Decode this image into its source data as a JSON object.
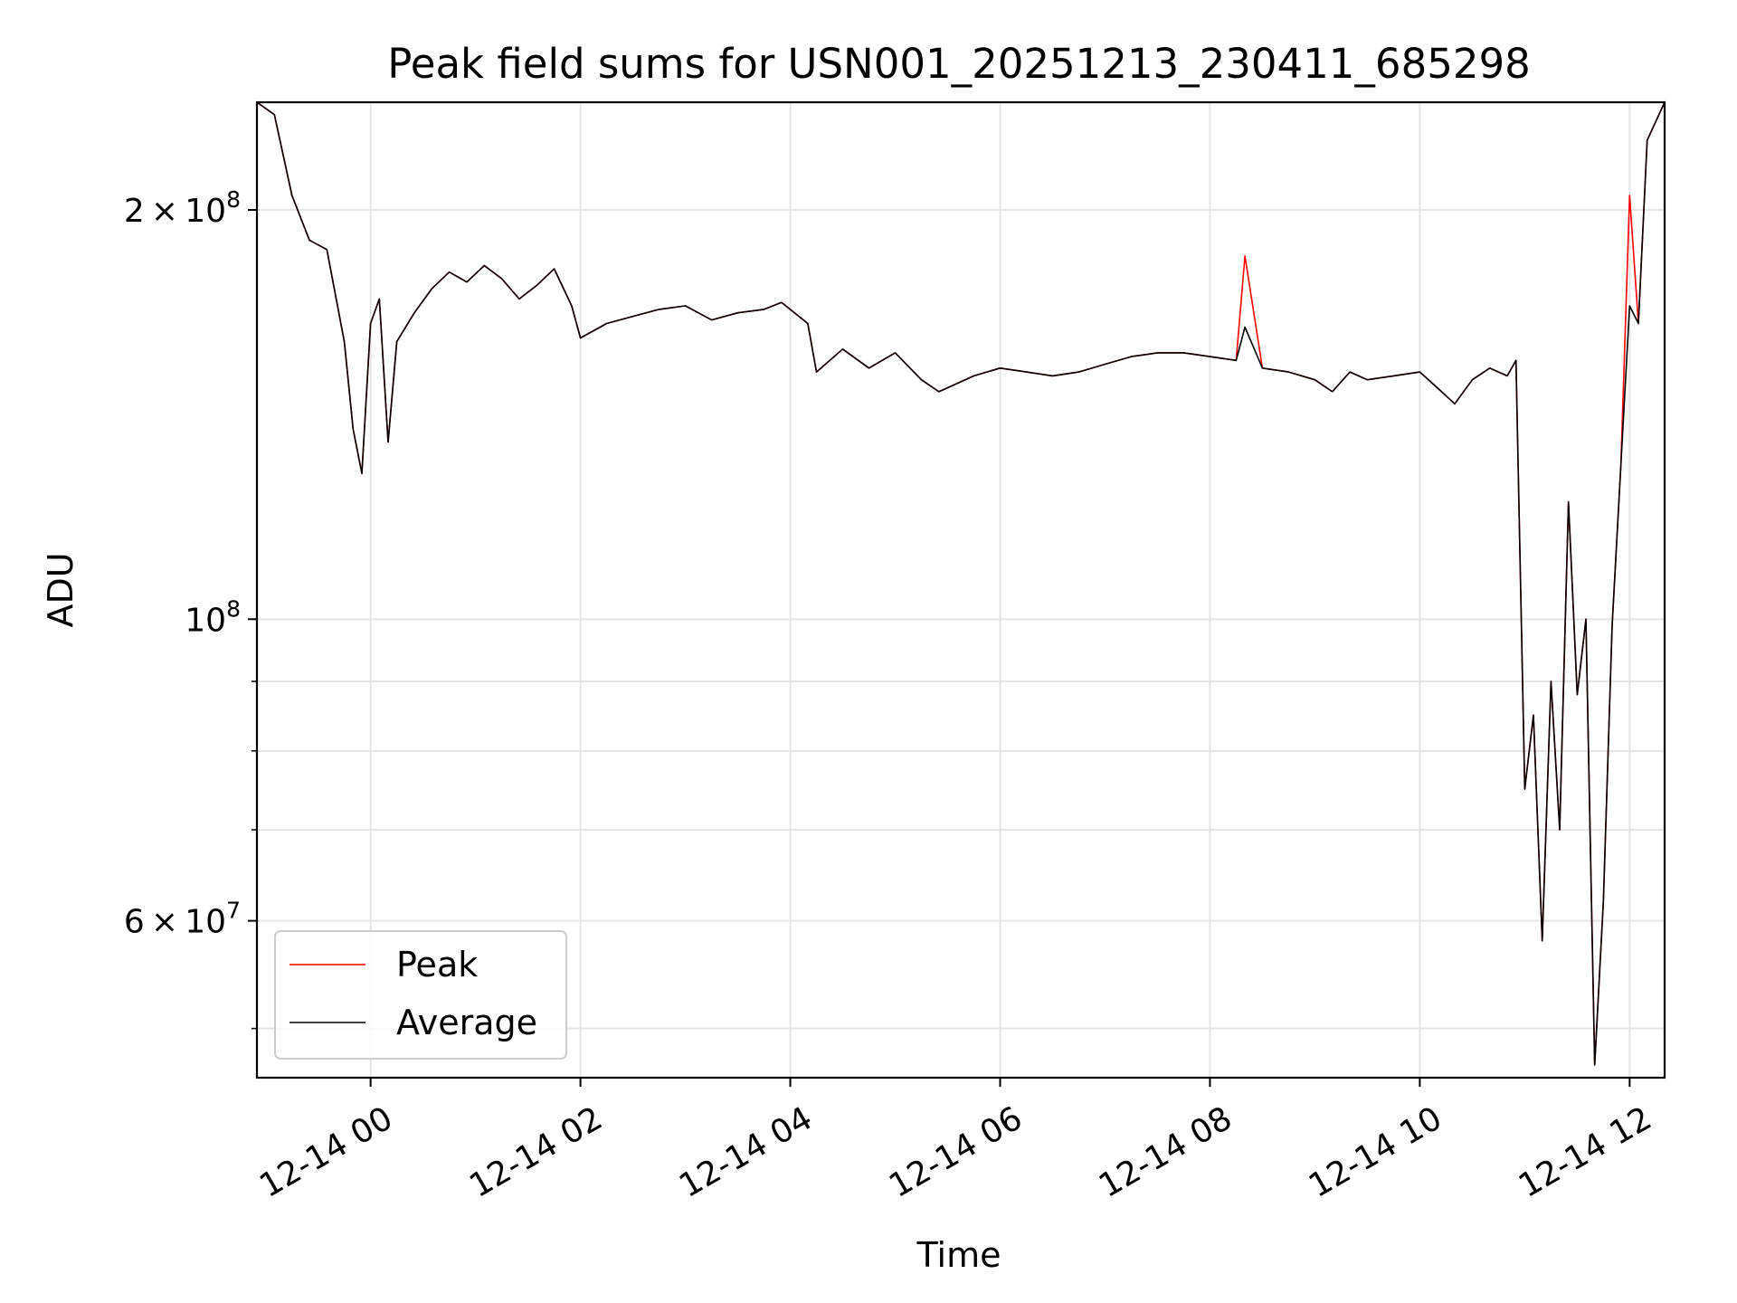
{
  "chart_data": {
    "type": "line",
    "title": "Peak field sums for USN001_20251213_230411_685298",
    "xlabel": "Time",
    "ylabel": "ADU",
    "yscale": "log",
    "xlim": [
      "2025-12-13 22:55",
      "2025-12-14 12:20"
    ],
    "ylim": [
      46000000,
      240000000
    ],
    "x_ticks": [
      {
        "t": "2025-12-14 00:00",
        "label": "12-14 00"
      },
      {
        "t": "2025-12-14 02:00",
        "label": "12-14 02"
      },
      {
        "t": "2025-12-14 04:00",
        "label": "12-14 04"
      },
      {
        "t": "2025-12-14 06:00",
        "label": "12-14 06"
      },
      {
        "t": "2025-12-14 08:00",
        "label": "12-14 08"
      },
      {
        "t": "2025-12-14 10:00",
        "label": "12-14 10"
      },
      {
        "t": "2025-12-14 12:00",
        "label": "12-14 12"
      }
    ],
    "y_major_ticks": [
      {
        "value": 60000000,
        "mant": "6",
        "exp": "7",
        "times": true
      },
      {
        "value": 100000000,
        "mant": "10",
        "exp": "8",
        "times": false
      },
      {
        "value": 200000000,
        "mant": "2",
        "exp": "8",
        "times": true
      }
    ],
    "y_minor_ticks": [
      50000000,
      70000000,
      80000000,
      90000000
    ],
    "grid": true,
    "legend": {
      "position": "lower-left",
      "entries": [
        "Peak",
        "Average"
      ]
    },
    "colors": {
      "Peak": "#ff0000",
      "Average": "#000000"
    },
    "x": [
      "2025-12-13 22:55",
      "2025-12-13 23:05",
      "2025-12-13 23:15",
      "2025-12-13 23:25",
      "2025-12-13 23:35",
      "2025-12-13 23:45",
      "2025-12-13 23:50",
      "2025-12-13 23:55",
      "2025-12-14 00:00",
      "2025-12-14 00:05",
      "2025-12-14 00:10",
      "2025-12-14 00:15",
      "2025-12-14 00:25",
      "2025-12-14 00:35",
      "2025-12-14 00:45",
      "2025-12-14 00:55",
      "2025-12-14 01:05",
      "2025-12-14 01:15",
      "2025-12-14 01:25",
      "2025-12-14 01:35",
      "2025-12-14 01:45",
      "2025-12-14 01:55",
      "2025-12-14 02:00",
      "2025-12-14 02:15",
      "2025-12-14 02:30",
      "2025-12-14 02:45",
      "2025-12-14 03:00",
      "2025-12-14 03:15",
      "2025-12-14 03:30",
      "2025-12-14 03:45",
      "2025-12-14 03:55",
      "2025-12-14 04:10",
      "2025-12-14 04:15",
      "2025-12-14 04:30",
      "2025-12-14 04:45",
      "2025-12-14 05:00",
      "2025-12-14 05:15",
      "2025-12-14 05:25",
      "2025-12-14 05:35",
      "2025-12-14 05:45",
      "2025-12-14 06:00",
      "2025-12-14 06:15",
      "2025-12-14 06:30",
      "2025-12-14 06:45",
      "2025-12-14 07:00",
      "2025-12-14 07:15",
      "2025-12-14 07:30",
      "2025-12-14 07:45",
      "2025-12-14 08:00",
      "2025-12-14 08:15",
      "2025-12-14 08:20",
      "2025-12-14 08:30",
      "2025-12-14 08:45",
      "2025-12-14 09:00",
      "2025-12-14 09:10",
      "2025-12-14 09:20",
      "2025-12-14 09:30",
      "2025-12-14 09:45",
      "2025-12-14 10:00",
      "2025-12-14 10:10",
      "2025-12-14 10:20",
      "2025-12-14 10:30",
      "2025-12-14 10:40",
      "2025-12-14 10:50",
      "2025-12-14 10:55",
      "2025-12-14 11:00",
      "2025-12-14 11:05",
      "2025-12-14 11:10",
      "2025-12-14 11:15",
      "2025-12-14 11:20",
      "2025-12-14 11:25",
      "2025-12-14 11:30",
      "2025-12-14 11:35",
      "2025-12-14 11:40",
      "2025-12-14 11:45",
      "2025-12-14 11:50",
      "2025-12-14 11:55",
      "2025-12-14 12:00",
      "2025-12-14 12:05",
      "2025-12-14 12:10",
      "2025-12-14 12:20"
    ],
    "series": [
      {
        "name": "Peak",
        "values": [
          240000000,
          235000000,
          205000000,
          190000000,
          187000000,
          160000000,
          138000000,
          128000000,
          165000000,
          172000000,
          135000000,
          160000000,
          168000000,
          175000000,
          180000000,
          177000000,
          182000000,
          178000000,
          172000000,
          176000000,
          181000000,
          170000000,
          161000000,
          165000000,
          167000000,
          169000000,
          170000000,
          166000000,
          168000000,
          169000000,
          171000000,
          165000000,
          152000000,
          158000000,
          153000000,
          157000000,
          150000000,
          147000000,
          149000000,
          151000000,
          153000000,
          152000000,
          151000000,
          152000000,
          154000000,
          156000000,
          157000000,
          157000000,
          156000000,
          155000000,
          185000000,
          153000000,
          152000000,
          150000000,
          147000000,
          152000000,
          150000000,
          151000000,
          152000000,
          148000000,
          144000000,
          150000000,
          153000000,
          151000000,
          155000000,
          75000000,
          85000000,
          58000000,
          90000000,
          70000000,
          122000000,
          88000000,
          100000000,
          47000000,
          62000000,
          99000000,
          130000000,
          205000000,
          165000000,
          225000000,
          240000000
        ]
      },
      {
        "name": "Average",
        "values": [
          240000000,
          235000000,
          205000000,
          190000000,
          187000000,
          160000000,
          138000000,
          128000000,
          165000000,
          172000000,
          135000000,
          160000000,
          168000000,
          175000000,
          180000000,
          177000000,
          182000000,
          178000000,
          172000000,
          176000000,
          181000000,
          170000000,
          161000000,
          165000000,
          167000000,
          169000000,
          170000000,
          166000000,
          168000000,
          169000000,
          171000000,
          165000000,
          152000000,
          158000000,
          153000000,
          157000000,
          150000000,
          147000000,
          149000000,
          151000000,
          153000000,
          152000000,
          151000000,
          152000000,
          154000000,
          156000000,
          157000000,
          157000000,
          156000000,
          155000000,
          164000000,
          153000000,
          152000000,
          150000000,
          147000000,
          152000000,
          150000000,
          151000000,
          152000000,
          148000000,
          144000000,
          150000000,
          153000000,
          151000000,
          155000000,
          75000000,
          85000000,
          58000000,
          90000000,
          70000000,
          122000000,
          88000000,
          100000000,
          47000000,
          62000000,
          99000000,
          130000000,
          170000000,
          165000000,
          225000000,
          240000000
        ]
      }
    ]
  }
}
